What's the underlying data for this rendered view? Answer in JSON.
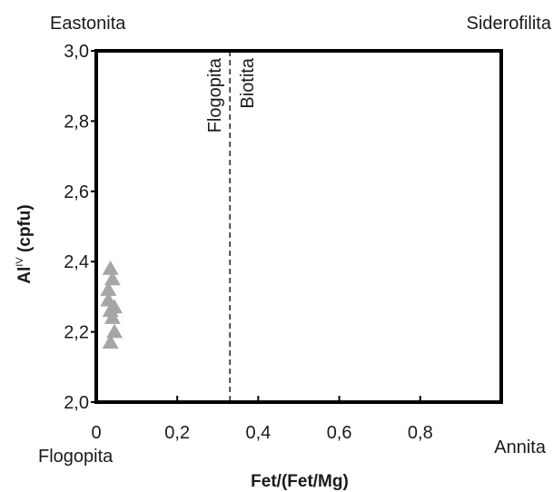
{
  "chart_data": {
    "type": "scatter",
    "title": "",
    "xlabel": "Fet/(Fet/Mg)",
    "ylabel_main": "Al",
    "ylabel_sup": "IV",
    "ylabel_rest": " (cpfu)",
    "xlim": [
      0,
      1.0
    ],
    "ylim": [
      2.0,
      3.0
    ],
    "x_ticks": [
      0,
      0.2,
      0.4,
      0.6,
      0.8
    ],
    "x_tick_labels": [
      "0",
      "0,2",
      "0,4",
      "0,6",
      "0,8"
    ],
    "y_ticks": [
      2.0,
      2.2,
      2.4,
      2.6,
      2.8,
      3.0
    ],
    "y_tick_labels": [
      "2,0",
      "2,2",
      "2,4",
      "2,6",
      "2,8",
      "3,0"
    ],
    "grid": false,
    "corner_labels": {
      "top_left": "Eastonita",
      "top_right": "Siderofilita",
      "bottom_left": "Flogopita",
      "bottom_right": "Annita"
    },
    "divider": {
      "x": 0.33,
      "left_label": "Flogopita",
      "right_label": "Biotita"
    },
    "marker": "triangle",
    "marker_color": "#a6a6a6",
    "series": [
      {
        "points": [
          {
            "x": 0.035,
            "y": 2.38
          },
          {
            "x": 0.04,
            "y": 2.35
          },
          {
            "x": 0.03,
            "y": 2.32
          },
          {
            "x": 0.03,
            "y": 2.29
          },
          {
            "x": 0.045,
            "y": 2.27
          },
          {
            "x": 0.035,
            "y": 2.26
          },
          {
            "x": 0.04,
            "y": 2.24
          },
          {
            "x": 0.045,
            "y": 2.2
          },
          {
            "x": 0.035,
            "y": 2.17
          }
        ]
      }
    ]
  }
}
